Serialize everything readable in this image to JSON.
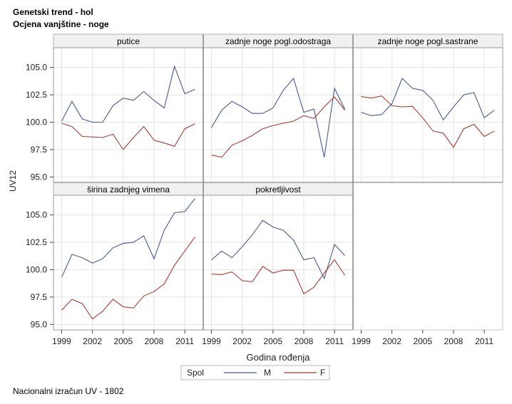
{
  "header": {
    "title": "Genetski trend - hol",
    "subtitle": "Ocjena vanjštine - noge"
  },
  "footnote": "Nacionalni izračun UV - 1802",
  "chart_data": {
    "type": "line",
    "layout": "panel-grid-3x2",
    "ylabel": "UV12",
    "xlabel": "Godina rođenja",
    "ylim": [
      94.5,
      106.8
    ],
    "yticks": [
      95.0,
      97.5,
      100.0,
      102.5,
      105.0
    ],
    "ytick_labels": [
      "95.0",
      "97.5",
      "100.0",
      "102.5",
      "105.0"
    ],
    "xlim": [
      1998.2,
      2012.8
    ],
    "xticks": [
      1999,
      2002,
      2005,
      2008,
      2011
    ],
    "xtick_labels": [
      "1999",
      "2002",
      "2005",
      "2008",
      "2011"
    ],
    "grid": true,
    "legend": {
      "title": "Spol",
      "placement": "bottom",
      "entries": [
        {
          "name": "M",
          "color": "#4a5a8c"
        },
        {
          "name": "F",
          "color": "#a83a32"
        }
      ]
    },
    "x": [
      1999,
      2000,
      2001,
      2002,
      2003,
      2004,
      2005,
      2006,
      2007,
      2008,
      2009,
      2010,
      2011,
      2012
    ],
    "panels": [
      {
        "label": "putice",
        "series": [
          {
            "name": "M",
            "values": [
              100.1,
              101.9,
              100.3,
              100.0,
              100.0,
              101.5,
              102.2,
              102.0,
              102.8,
              102.0,
              101.3,
              105.1,
              102.6,
              103.0
            ]
          },
          {
            "name": "F",
            "values": [
              99.9,
              99.6,
              98.7,
              98.65,
              98.6,
              98.9,
              97.5,
              98.6,
              99.6,
              98.35,
              98.1,
              97.8,
              99.4,
              99.85
            ]
          }
        ]
      },
      {
        "label": "zadnje noge pogl.odostraga",
        "series": [
          {
            "name": "M",
            "values": [
              99.5,
              101.1,
              101.9,
              101.4,
              100.8,
              100.8,
              101.3,
              102.9,
              104.0,
              100.9,
              101.2,
              96.8,
              103.1,
              101.2
            ]
          },
          {
            "name": "F",
            "values": [
              97.0,
              96.8,
              97.9,
              98.3,
              98.8,
              99.4,
              99.7,
              99.9,
              100.1,
              100.6,
              100.35,
              101.4,
              102.3,
              101.1
            ]
          }
        ]
      },
      {
        "label": "zadnje noge pogl.sastrane",
        "series": [
          {
            "name": "M",
            "values": [
              100.9,
              100.6,
              100.7,
              101.7,
              104.0,
              103.1,
              102.9,
              102.0,
              100.2,
              101.4,
              102.5,
              102.7,
              100.4,
              101.1
            ]
          },
          {
            "name": "F",
            "values": [
              102.35,
              102.2,
              102.4,
              101.5,
              101.4,
              101.45,
              100.4,
              99.2,
              99.0,
              97.7,
              99.4,
              99.8,
              98.7,
              99.2
            ]
          }
        ]
      },
      {
        "label": "širina zadnjeg vimena",
        "series": [
          {
            "name": "M",
            "values": [
              99.3,
              101.4,
              101.1,
              100.6,
              101.0,
              102.0,
              102.4,
              102.5,
              103.1,
              101.0,
              103.6,
              105.2,
              105.3,
              106.5
            ]
          },
          {
            "name": "F",
            "values": [
              96.3,
              97.3,
              96.9,
              95.5,
              96.2,
              97.3,
              96.6,
              96.5,
              97.6,
              98.0,
              98.7,
              100.4,
              101.7,
              103.0
            ]
          }
        ]
      },
      {
        "label": "pokretljivost",
        "series": [
          {
            "name": "M",
            "values": [
              100.9,
              101.7,
              101.1,
              102.1,
              103.2,
              104.5,
              103.9,
              103.6,
              102.7,
              100.9,
              101.1,
              99.2,
              102.3,
              101.3
            ]
          },
          {
            "name": "F",
            "values": [
              99.6,
              99.55,
              99.8,
              99.0,
              98.9,
              100.3,
              99.7,
              99.95,
              99.95,
              97.8,
              98.4,
              99.7,
              100.9,
              99.5
            ]
          }
        ]
      }
    ]
  }
}
